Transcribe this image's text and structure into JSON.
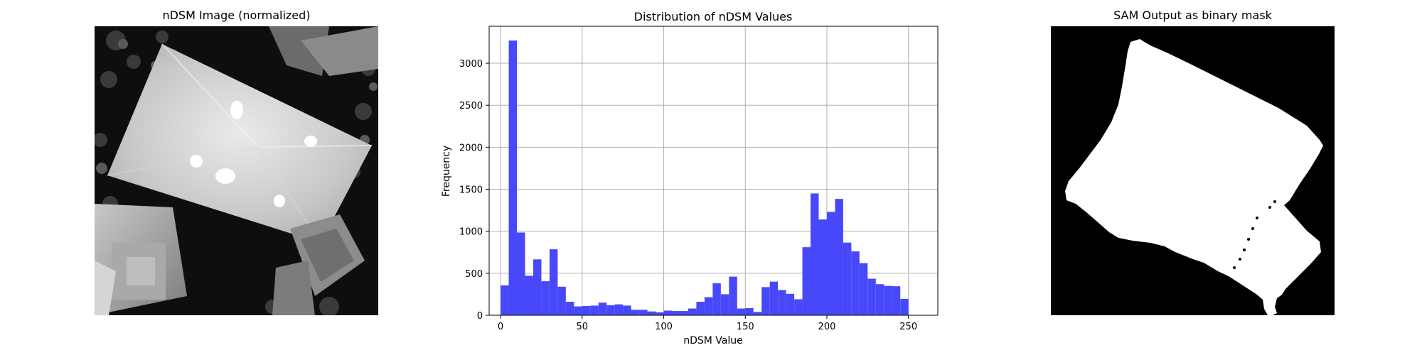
{
  "panels": {
    "left_title": "nDSM Image (normalized)",
    "right_title": "SAM Output as binary mask"
  },
  "chart_data": {
    "type": "bar",
    "title": "Distribution of nDSM Values",
    "xlabel": "nDSM Value",
    "ylabel": "Frequency",
    "xlim": [
      -7,
      268
    ],
    "ylim": [
      0,
      3440
    ],
    "xticks": [
      0,
      50,
      100,
      150,
      200,
      250
    ],
    "yticks": [
      0,
      500,
      1000,
      1500,
      2000,
      2500,
      3000
    ],
    "grid": true,
    "bin_width": 5,
    "bin_starts": [
      0,
      5,
      10,
      15,
      20,
      25,
      30,
      35,
      40,
      45,
      50,
      55,
      60,
      65,
      70,
      75,
      80,
      85,
      90,
      95,
      100,
      105,
      110,
      115,
      120,
      125,
      130,
      135,
      140,
      145,
      150,
      155,
      160,
      165,
      170,
      175,
      180,
      185,
      190,
      195,
      200,
      205,
      210,
      215,
      220,
      225,
      230,
      235,
      240,
      245,
      250
    ],
    "values": [
      355,
      3270,
      985,
      470,
      665,
      405,
      785,
      340,
      160,
      105,
      110,
      115,
      150,
      120,
      130,
      115,
      65,
      65,
      45,
      35,
      55,
      50,
      50,
      80,
      160,
      215,
      380,
      250,
      460,
      80,
      85,
      40,
      335,
      400,
      300,
      255,
      190,
      810,
      1450,
      1140,
      1230,
      1385,
      865,
      760,
      620,
      435,
      370,
      350,
      345,
      195,
      0
    ],
    "bar_color": "#4848fb",
    "grid_color": "#b0b0b0"
  }
}
